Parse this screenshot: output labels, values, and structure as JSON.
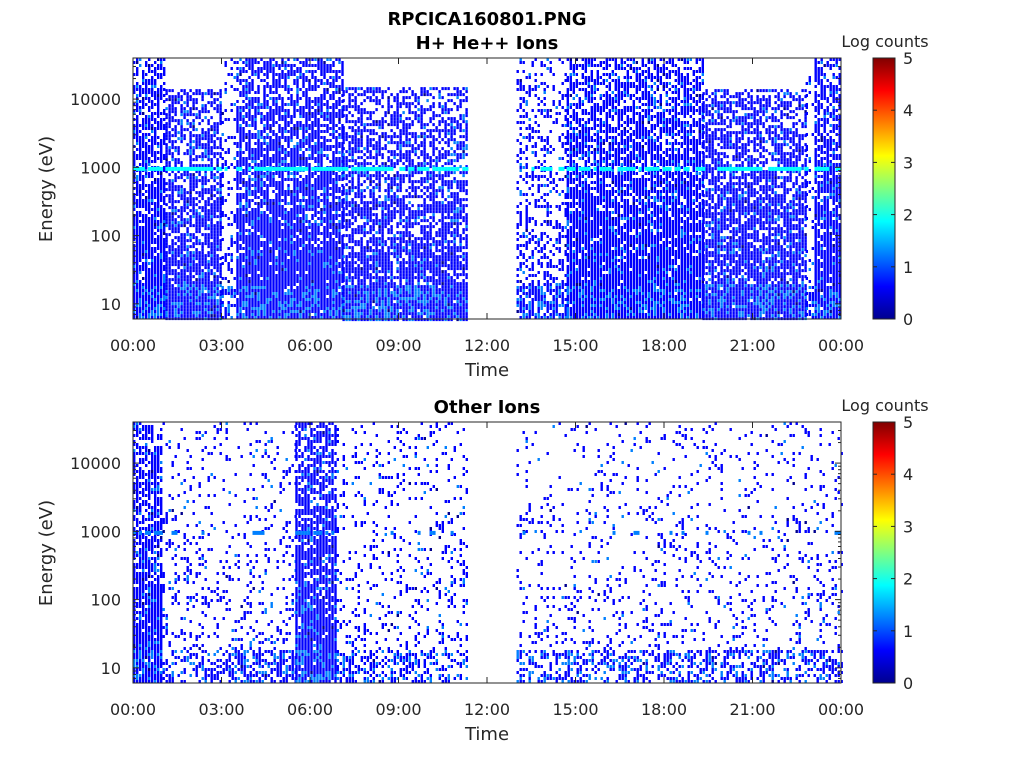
{
  "figure": {
    "title": "RPCICA160801.PNG"
  },
  "colormap": [
    "#00008f",
    "#0000ff",
    "#0080ff",
    "#00ffff",
    "#80ff80",
    "#ffff00",
    "#ff8000",
    "#ff0000",
    "#800000"
  ],
  "chart_data": [
    {
      "type": "heatmap",
      "title": "H+ He++ Ions",
      "xlabel": "Time",
      "ylabel": "Energy (eV)",
      "xticks": [
        "00:00",
        "03:00",
        "06:00",
        "09:00",
        "12:00",
        "15:00",
        "18:00",
        "21:00",
        "00:00"
      ],
      "xlim_hours": [
        0,
        24
      ],
      "ylim_eV": [
        6,
        40000
      ],
      "yscale": "log",
      "yticks": [
        "10",
        "100",
        "1000",
        "10000"
      ],
      "ytick_values": [
        10,
        100,
        1000,
        10000
      ],
      "colorbar": {
        "label": "Log counts",
        "ticks": [
          "0",
          "1",
          "2",
          "3",
          "4",
          "5"
        ],
        "range": [
          0,
          5
        ]
      },
      "data_gaps_hours": [
        [
          11.3,
          13.0
        ]
      ],
      "segments": [
        {
          "from_hour": 0.0,
          "to_hour": 1.1,
          "density": 0.85,
          "top_eV": 40000
        },
        {
          "from_hour": 1.1,
          "to_hour": 3.0,
          "density": 0.75,
          "top_eV": 14000
        },
        {
          "from_hour": 3.0,
          "to_hour": 3.5,
          "density": 0.25,
          "top_eV": 40000
        },
        {
          "from_hour": 3.5,
          "to_hour": 7.1,
          "density": 0.85,
          "top_eV": 40000
        },
        {
          "from_hour": 7.1,
          "to_hour": 11.3,
          "density": 0.7,
          "top_eV": 15000
        },
        {
          "from_hour": 13.0,
          "to_hour": 14.7,
          "density": 0.35,
          "top_eV": 40000
        },
        {
          "from_hour": 14.7,
          "to_hour": 19.3,
          "density": 0.85,
          "top_eV": 40000
        },
        {
          "from_hour": 19.3,
          "to_hour": 22.8,
          "density": 0.75,
          "top_eV": 14000
        },
        {
          "from_hour": 22.8,
          "to_hour": 23.1,
          "density": 0.2,
          "top_eV": 40000
        },
        {
          "from_hour": 23.1,
          "to_hour": 24.0,
          "density": 0.85,
          "top_eV": 40000
        }
      ],
      "band": {
        "energy_eV": 950,
        "level": 1.7
      }
    },
    {
      "type": "heatmap",
      "title": "Other Ions",
      "xlabel": "Time",
      "ylabel": "Energy (eV)",
      "xticks": [
        "00:00",
        "03:00",
        "06:00",
        "09:00",
        "12:00",
        "15:00",
        "18:00",
        "21:00",
        "00:00"
      ],
      "xlim_hours": [
        0,
        24
      ],
      "ylim_eV": [
        6,
        40000
      ],
      "yscale": "log",
      "yticks": [
        "10",
        "100",
        "1000",
        "10000"
      ],
      "ytick_values": [
        10,
        100,
        1000,
        10000
      ],
      "colorbar": {
        "label": "Log counts",
        "ticks": [
          "0",
          "1",
          "2",
          "3",
          "4",
          "5"
        ],
        "range": [
          0,
          5
        ]
      },
      "data_gaps_hours": [
        [
          11.3,
          13.0
        ]
      ],
      "segments": [
        {
          "from_hour": 0.0,
          "to_hour": 1.0,
          "density": 0.85,
          "top_eV": 40000
        },
        {
          "from_hour": 1.0,
          "to_hour": 5.5,
          "density": 0.15,
          "top_eV": 40000
        },
        {
          "from_hour": 5.5,
          "to_hour": 6.9,
          "density": 0.85,
          "top_eV": 40000
        },
        {
          "from_hour": 6.9,
          "to_hour": 11.3,
          "density": 0.15,
          "top_eV": 40000
        },
        {
          "from_hour": 13.0,
          "to_hour": 24.0,
          "density": 0.12,
          "top_eV": 40000
        }
      ],
      "band": {
        "energy_eV": 950,
        "level": 1.2
      }
    }
  ]
}
